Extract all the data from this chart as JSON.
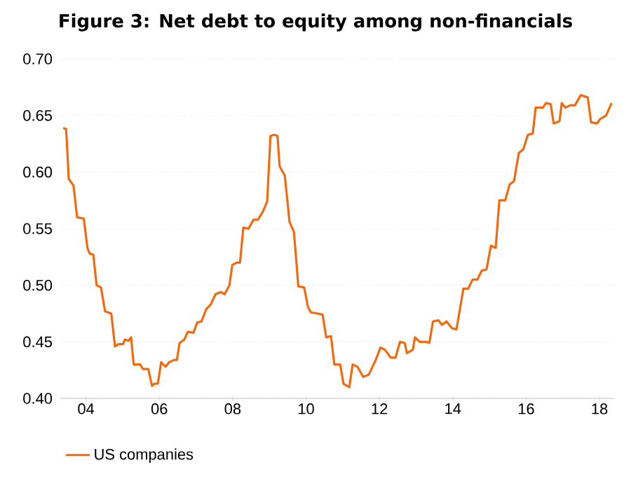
{
  "chart_data": {
    "type": "line",
    "title": "Figure 3: Net debt to equity among non-financials",
    "xlim": [
      2003.3,
      2018.4
    ],
    "ylim": [
      0.4,
      0.7
    ],
    "xticks": [
      {
        "value": 2004,
        "label": "04"
      },
      {
        "value": 2006,
        "label": "06"
      },
      {
        "value": 2008,
        "label": "08"
      },
      {
        "value": 2010,
        "label": "10"
      },
      {
        "value": 2012,
        "label": "12"
      },
      {
        "value": 2014,
        "label": "14"
      },
      {
        "value": 2016,
        "label": "16"
      },
      {
        "value": 2018,
        "label": "18"
      }
    ],
    "yticks": [
      {
        "value": 0.4,
        "label": "0.40"
      },
      {
        "value": 0.45,
        "label": "0.45"
      },
      {
        "value": 0.5,
        "label": "0.50"
      },
      {
        "value": 0.55,
        "label": "0.55"
      },
      {
        "value": 0.6,
        "label": "0.60"
      },
      {
        "value": 0.65,
        "label": "0.65"
      },
      {
        "value": 0.7,
        "label": "0.70"
      }
    ],
    "grid": "y",
    "legend": "bottom",
    "marker": "none",
    "line_style": "solid",
    "series": [
      {
        "name": "US companies",
        "color": "#f26a0f",
        "x": [
          2003.38,
          2003.46,
          2003.53,
          2003.66,
          2003.76,
          2003.94,
          2004.04,
          2004.1,
          2004.2,
          2004.29,
          2004.41,
          2004.52,
          2004.69,
          2004.79,
          2004.89,
          2005.01,
          2005.06,
          2005.16,
          2005.23,
          2005.3,
          2005.48,
          2005.55,
          2005.7,
          2005.8,
          2005.86,
          2005.96,
          2006.05,
          2006.17,
          2006.27,
          2006.4,
          2006.48,
          2006.55,
          2006.68,
          2006.78,
          2006.93,
          2007.03,
          2007.15,
          2007.28,
          2007.4,
          2007.53,
          2007.68,
          2007.78,
          2007.91,
          2007.99,
          2008.11,
          2008.2,
          2008.29,
          2008.43,
          2008.57,
          2008.69,
          2008.82,
          2008.94,
          2009.03,
          2009.13,
          2009.22,
          2009.28,
          2009.42,
          2009.55,
          2009.67,
          2009.79,
          2009.95,
          2010.05,
          2010.13,
          2010.32,
          2010.45,
          2010.55,
          2010.68,
          2010.77,
          2010.93,
          2011.02,
          2011.18,
          2011.27,
          2011.4,
          2011.56,
          2011.71,
          2011.9,
          2012.03,
          2012.15,
          2012.31,
          2012.44,
          2012.56,
          2012.69,
          2012.75,
          2012.91,
          2012.97,
          2013.1,
          2013.28,
          2013.36,
          2013.46,
          2013.61,
          2013.71,
          2013.83,
          2013.98,
          2014.1,
          2014.29,
          2014.42,
          2014.54,
          2014.67,
          2014.79,
          2014.92,
          2015.04,
          2015.17,
          2015.27,
          2015.43,
          2015.55,
          2015.67,
          2015.8,
          2015.92,
          2016.05,
          2016.18,
          2016.26,
          2016.46,
          2016.54,
          2016.67,
          2016.75,
          2016.91,
          2016.97,
          2017.07,
          2017.2,
          2017.33,
          2017.49,
          2017.68,
          2017.77,
          2017.93,
          2018.02,
          2018.18,
          2018.33
        ],
        "values": [
          0.639,
          0.638,
          0.594,
          0.588,
          0.56,
          0.559,
          0.533,
          0.528,
          0.527,
          0.5,
          0.498,
          0.477,
          0.475,
          0.446,
          0.448,
          0.448,
          0.452,
          0.451,
          0.454,
          0.43,
          0.43,
          0.426,
          0.426,
          0.411,
          0.413,
          0.413,
          0.432,
          0.428,
          0.432,
          0.434,
          0.434,
          0.449,
          0.452,
          0.459,
          0.458,
          0.467,
          0.468,
          0.479,
          0.483,
          0.492,
          0.494,
          0.492,
          0.5,
          0.518,
          0.52,
          0.52,
          0.551,
          0.55,
          0.558,
          0.558,
          0.565,
          0.574,
          0.632,
          0.633,
          0.632,
          0.605,
          0.597,
          0.556,
          0.547,
          0.499,
          0.498,
          0.481,
          0.476,
          0.475,
          0.474,
          0.454,
          0.455,
          0.43,
          0.43,
          0.413,
          0.41,
          0.43,
          0.428,
          0.419,
          0.421,
          0.434,
          0.445,
          0.443,
          0.436,
          0.436,
          0.45,
          0.449,
          0.44,
          0.443,
          0.454,
          0.45,
          0.45,
          0.449,
          0.468,
          0.469,
          0.465,
          0.468,
          0.462,
          0.461,
          0.497,
          0.497,
          0.505,
          0.505,
          0.513,
          0.514,
          0.535,
          0.533,
          0.575,
          0.575,
          0.589,
          0.592,
          0.617,
          0.62,
          0.633,
          0.634,
          0.657,
          0.657,
          0.661,
          0.66,
          0.643,
          0.645,
          0.661,
          0.657,
          0.659,
          0.659,
          0.668,
          0.666,
          0.644,
          0.643,
          0.647,
          0.65,
          0.661
        ]
      }
    ]
  }
}
